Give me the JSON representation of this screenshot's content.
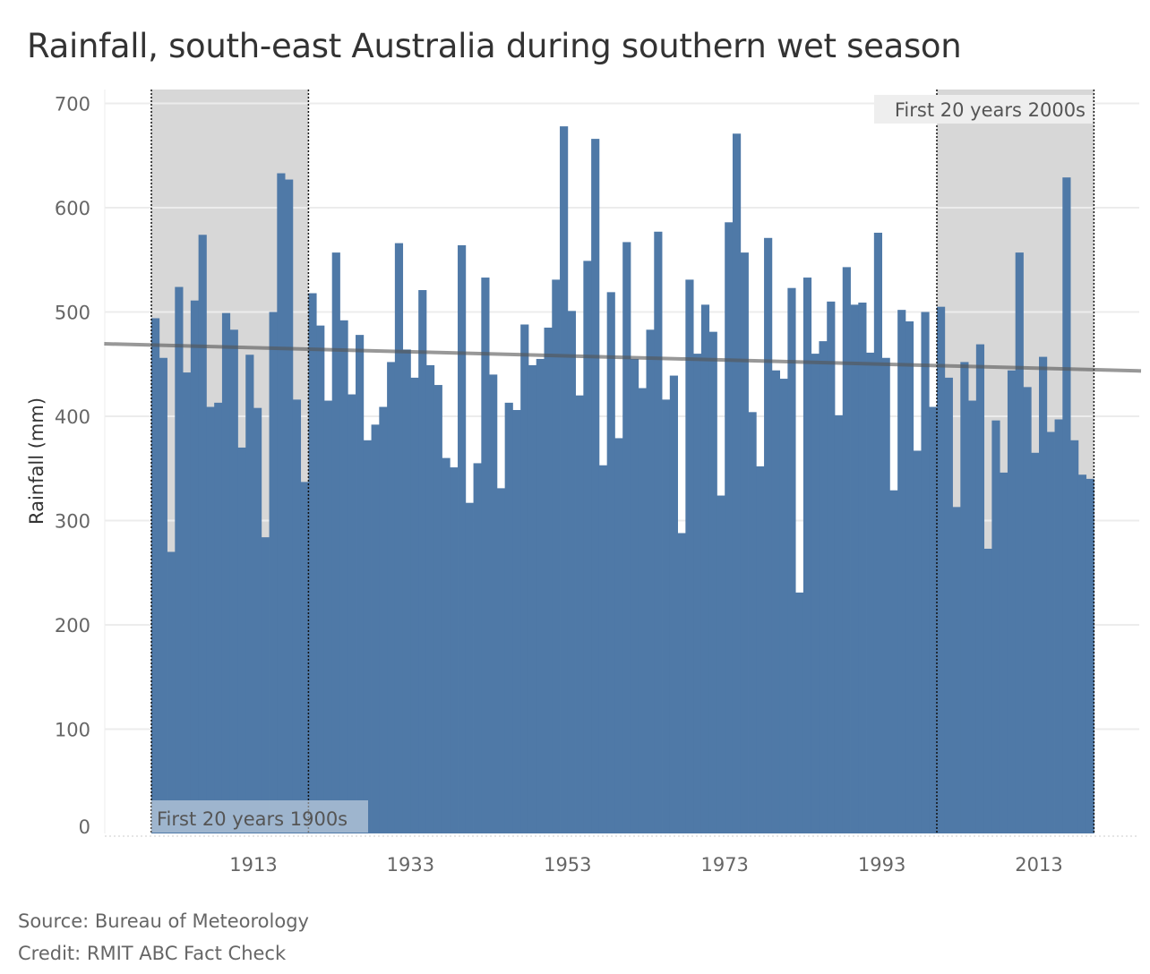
{
  "chart_data": {
    "type": "bar",
    "title": "Rainfall, south-east Australia during southern wet season",
    "xlabel": "",
    "ylabel": "Rainfall (mm)",
    "ylim": [
      0,
      700
    ],
    "xlim": [
      1894,
      2026
    ],
    "grid": true,
    "yticks": [
      0,
      100,
      200,
      300,
      400,
      500,
      600,
      700
    ],
    "xticks": [
      1913,
      1933,
      1953,
      1973,
      1993,
      2013
    ],
    "start_year": 1900,
    "values": [
      494,
      456,
      270,
      524,
      442,
      511,
      574,
      409,
      413,
      499,
      483,
      370,
      459,
      408,
      284,
      500,
      633,
      627,
      416,
      337,
      518,
      487,
      415,
      557,
      492,
      421,
      478,
      377,
      392,
      409,
      452,
      566,
      464,
      437,
      521,
      449,
      430,
      360,
      351,
      564,
      317,
      355,
      533,
      440,
      331,
      413,
      406,
      488,
      449,
      455,
      485,
      531,
      678,
      501,
      420,
      549,
      666,
      353,
      519,
      379,
      567,
      455,
      427,
      483,
      577,
      416,
      439,
      288,
      531,
      460,
      507,
      481,
      324,
      586,
      671,
      557,
      404,
      352,
      571,
      444,
      436,
      523,
      231,
      533,
      460,
      472,
      510,
      401,
      543,
      507,
      509,
      461,
      576,
      456,
      329,
      502,
      491,
      367,
      500,
      409,
      505,
      437,
      313,
      452,
      415,
      469,
      273,
      396,
      346,
      444,
      557,
      428,
      365,
      457,
      385,
      397,
      629,
      377,
      344,
      340
    ],
    "trend_line": {
      "from": [
        1894,
        469.5
      ],
      "to": [
        2026,
        443.5
      ]
    },
    "highlight_ranges": [
      {
        "start": 1900,
        "end": 1920,
        "label": "First 20 years 1900s"
      },
      {
        "start": 2000,
        "end": 2020,
        "label": "First 20 years 2000s"
      }
    ],
    "colors": {
      "bar": "#4f79a7",
      "band": "#d7d7d7",
      "trend": "#555555",
      "grid": "#ececec"
    }
  },
  "footer": {
    "source": "Source: Bureau of Meteorology",
    "credit": "Credit: RMIT ABC Fact Check"
  }
}
